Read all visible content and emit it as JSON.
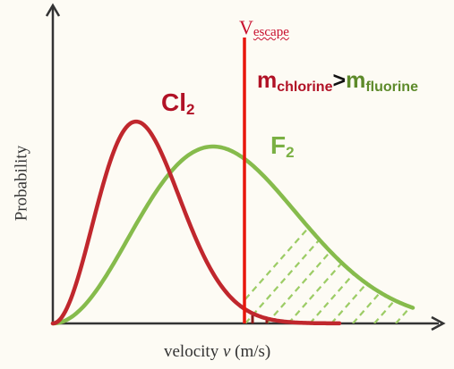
{
  "axes": {
    "y_label": "Probability",
    "x_label_prefix": "velocity ",
    "x_label_symbol": "v",
    "x_label_unit": " (m/s)"
  },
  "escape_line": {
    "main": "V",
    "sub": "escape",
    "color": "#e8160c"
  },
  "relation": {
    "left_symbol": "m",
    "left_sub": "chlorine",
    "operator": ">",
    "right_symbol": "m",
    "right_sub": "fluorine"
  },
  "curves": {
    "chlorine": {
      "symbol": "Cl",
      "subscript": "2",
      "color": "#c0272d"
    },
    "fluorine": {
      "symbol": "F",
      "subscript": "2",
      "color": "#86bb4c"
    }
  }
}
